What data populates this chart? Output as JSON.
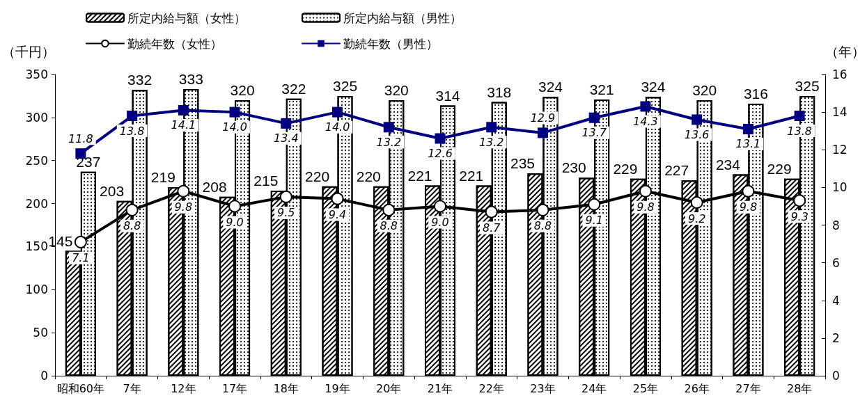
{
  "chart_data": {
    "type": "bar",
    "ylabel": "（千円）",
    "y2label": "（年）",
    "categories": [
      "昭和60年",
      "7年",
      "12年",
      "17年",
      "18年",
      "19年",
      "20年",
      "21年",
      "22年",
      "23年",
      "24年",
      "25年",
      "26年",
      "27年",
      "28年"
    ],
    "series": [
      {
        "name": "所定内給与額（女性）",
        "color": "#000000",
        "values": [
          145,
          203,
          219,
          208,
          215,
          220,
          220,
          221,
          221,
          235,
          230,
          229,
          227,
          234,
          229
        ],
        "value_labels": [
          "145",
          "203",
          "219",
          "208",
          "215",
          "220",
          "220",
          "221",
          "221",
          "235",
          "230",
          "229",
          "227",
          "234",
          "229"
        ]
      },
      {
        "name": "所定内給与額（男性）",
        "color": "#000000",
        "values": [
          237,
          332,
          333,
          320,
          322,
          325,
          320,
          314,
          318,
          324,
          321,
          324,
          320,
          316,
          325
        ],
        "value_labels": [
          "237",
          "332",
          "333",
          "320",
          "322",
          "325",
          "320",
          "314",
          "318",
          "324",
          "321",
          "324",
          "320",
          "316",
          "325"
        ]
      },
      {
        "name": "勤続年数（女性）",
        "type": "line",
        "axis": "y2",
        "color": "#000000",
        "marker": "circle",
        "values": [
          7.1,
          8.8,
          9.8,
          9.0,
          9.5,
          9.4,
          8.8,
          9.0,
          8.7,
          8.8,
          9.1,
          9.8,
          9.2,
          9.8,
          9.3
        ],
        "value_labels": [
          "7.1",
          "8.8",
          "9.8",
          "9.0",
          "9.5",
          "9.4",
          "8.8",
          "9.0",
          "8.7",
          "8.8",
          "9.1",
          "9.8",
          "9.2",
          "9.8",
          "9.3"
        ]
      },
      {
        "name": "勤続年数（男性）",
        "type": "line",
        "axis": "y2",
        "color": "#000080",
        "marker": "square",
        "values": [
          11.8,
          13.8,
          14.1,
          14.0,
          13.4,
          14.0,
          13.2,
          12.6,
          13.2,
          12.9,
          13.7,
          14.3,
          13.6,
          13.1,
          13.8
        ],
        "value_labels": [
          "11.8",
          "13.8",
          "14.1",
          "14.0",
          "13.4",
          "14.0",
          "13.2",
          "12.6",
          "13.2",
          "12.9",
          "13.7",
          "14.3",
          "13.6",
          "13.1",
          "13.8"
        ]
      }
    ],
    "ylim": [
      0,
      350
    ],
    "yticks": [
      0,
      50,
      100,
      150,
      200,
      250,
      300,
      350
    ],
    "y2lim": [
      0,
      16
    ],
    "y2ticks": [
      0,
      2,
      4,
      6,
      8,
      10,
      12,
      14,
      16
    ],
    "grid": false,
    "legend": "top",
    "line_style": "solid"
  }
}
